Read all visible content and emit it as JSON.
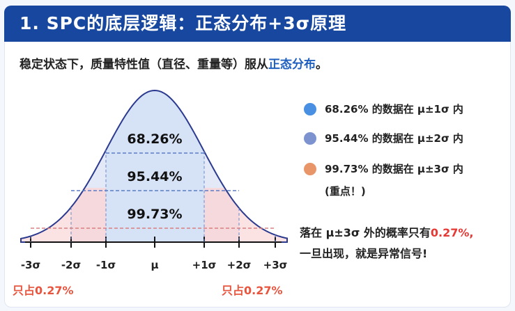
{
  "header": {
    "title": "1.  SPC的底层逻辑：正态分布+3σ原理"
  },
  "intro": {
    "text": "稳定状态下，质量特性值（直径、重量等）服从",
    "highlight": "正态分布",
    "end": "。"
  },
  "curve": {
    "bands": [
      "68.26%",
      "95.44%",
      "99.73%"
    ],
    "axis_labels": [
      "-3σ",
      "-2σ",
      "-1σ",
      "μ",
      "+1σ",
      "+2σ",
      "+3σ"
    ],
    "tails": [
      "只占0.27%",
      "只占0.27%"
    ]
  },
  "legend": [
    {
      "text": "68.26% 的数据在 μ±1σ 内"
    },
    {
      "text": "95.44% 的数据在 μ±2σ 内"
    },
    {
      "text": "99.73% 的数据在 μ±3σ 内",
      "note": "(重点！)"
    }
  ],
  "note": {
    "text": "落在 μ±3σ 外的概率只有",
    "highlight": "0.27%,",
    "line2": "一旦出现，就是异常信号!"
  }
}
